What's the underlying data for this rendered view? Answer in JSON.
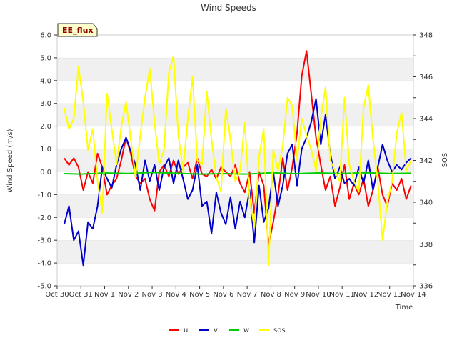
{
  "chart_data": {
    "type": "line",
    "title": "Wind Speeds",
    "badge": "EE_flux",
    "xlabel": "Time",
    "ylabel": "Wind Speed (m/s)",
    "y2label": "SOS",
    "x_ticks": [
      "Oct 30",
      "Oct 31",
      "Nov 1",
      "Nov 2",
      "Nov 3",
      "Nov 4",
      "Nov 5",
      "Nov 6",
      "Nov 7",
      "Nov 8",
      "Nov 9",
      "Nov 10",
      "Nov 11",
      "Nov 12",
      "Nov 13",
      "Nov 14"
    ],
    "xlim": [
      0,
      15
    ],
    "ylim": [
      -5.0,
      6.0
    ],
    "y_ticks": [
      "-5.0",
      "-4.0",
      "-3.0",
      "-2.0",
      "-1.0",
      "0.0",
      "1.0",
      "2.0",
      "3.0",
      "4.0",
      "5.0",
      "6.0"
    ],
    "y2lim": [
      336,
      348
    ],
    "y2_ticks": [
      "336",
      "338",
      "340",
      "342",
      "344",
      "346",
      "348"
    ],
    "grid": "horizontal bands",
    "legend_position": "bottom-center",
    "series": [
      {
        "name": "u",
        "color": "#ff0000",
        "axis": "left",
        "x": [
          0.3,
          0.5,
          0.7,
          0.9,
          1.1,
          1.3,
          1.5,
          1.7,
          1.9,
          2.1,
          2.3,
          2.5,
          2.7,
          2.9,
          3.1,
          3.3,
          3.5,
          3.7,
          3.9,
          4.1,
          4.3,
          4.5,
          4.7,
          4.9,
          5.1,
          5.3,
          5.5,
          5.7,
          5.9,
          6.1,
          6.3,
          6.5,
          6.7,
          6.9,
          7.1,
          7.3,
          7.5,
          7.7,
          7.9,
          8.1,
          8.3,
          8.5,
          8.7,
          8.9,
          9.1,
          9.3,
          9.5,
          9.7,
          9.9,
          10.1,
          10.3,
          10.5,
          10.7,
          10.9,
          11.1,
          11.3,
          11.5,
          11.7,
          11.9,
          12.1,
          12.3,
          12.5,
          12.7,
          12.9,
          13.1,
          13.3,
          13.5,
          13.7,
          13.9,
          14.1,
          14.3,
          14.5,
          14.7,
          14.9
        ],
        "y": [
          0.6,
          0.3,
          0.6,
          0.2,
          -0.8,
          0.0,
          -0.5,
          0.8,
          0.2,
          -1.0,
          -0.6,
          -0.3,
          0.5,
          1.5,
          0.8,
          -0.2,
          -0.5,
          -0.3,
          -1.2,
          -1.7,
          0.0,
          0.3,
          -0.2,
          0.5,
          -0.1,
          0.2,
          0.4,
          -0.3,
          0.6,
          -0.1,
          -0.2,
          0.1,
          -0.3,
          0.2,
          0.0,
          -0.2,
          0.3,
          -0.5,
          -0.9,
          0.0,
          -1.8,
          0.0,
          -0.6,
          -3.2,
          -2.2,
          -1.0,
          0.6,
          -0.8,
          0.2,
          1.7,
          4.2,
          5.3,
          3.4,
          1.5,
          0.3,
          -0.8,
          -0.2,
          -1.5,
          -0.7,
          0.3,
          -1.2,
          -0.5,
          -1.0,
          -0.3,
          -1.5,
          -0.8,
          0.2,
          -1.0,
          -1.5,
          -0.5,
          -0.8,
          -0.3,
          -1.2,
          -0.6
        ]
      },
      {
        "name": "v",
        "color": "#0000cc",
        "axis": "left",
        "x": [
          0.3,
          0.5,
          0.7,
          0.9,
          1.1,
          1.3,
          1.5,
          1.7,
          1.9,
          2.1,
          2.3,
          2.5,
          2.7,
          2.9,
          3.1,
          3.3,
          3.5,
          3.7,
          3.9,
          4.1,
          4.3,
          4.5,
          4.7,
          4.9,
          5.1,
          5.3,
          5.5,
          5.7,
          5.9,
          6.1,
          6.3,
          6.5,
          6.7,
          6.9,
          7.1,
          7.3,
          7.5,
          7.7,
          7.9,
          8.1,
          8.3,
          8.5,
          8.7,
          8.9,
          9.1,
          9.3,
          9.5,
          9.7,
          9.9,
          10.1,
          10.3,
          10.5,
          10.7,
          10.9,
          11.1,
          11.3,
          11.5,
          11.7,
          11.9,
          12.1,
          12.3,
          12.5,
          12.7,
          12.9,
          13.1,
          13.3,
          13.5,
          13.7,
          13.9,
          14.1,
          14.3,
          14.5,
          14.7,
          14.9
        ],
        "y": [
          -2.3,
          -1.5,
          -3.0,
          -2.6,
          -4.1,
          -2.2,
          -2.5,
          -1.5,
          0.2,
          -0.3,
          -0.7,
          0.3,
          1.0,
          1.5,
          0.9,
          0.3,
          -0.8,
          0.5,
          -0.4,
          0.3,
          -0.8,
          0.2,
          0.6,
          -0.5,
          0.5,
          -0.3,
          -1.2,
          -0.8,
          0.3,
          -1.5,
          -1.3,
          -2.7,
          -0.9,
          -1.8,
          -2.3,
          -1.1,
          -2.5,
          -1.3,
          -2.0,
          -0.8,
          -3.1,
          -0.6,
          -2.2,
          -1.6,
          0.0,
          -1.5,
          -0.6,
          0.8,
          1.2,
          -0.6,
          1.0,
          1.5,
          2.2,
          3.2,
          1.2,
          2.5,
          0.8,
          -0.3,
          0.2,
          -0.5,
          -0.3,
          -0.6,
          0.2,
          -0.5,
          0.5,
          -0.8,
          0.2,
          1.2,
          0.5,
          0.0,
          0.3,
          0.1,
          0.4,
          0.6
        ]
      },
      {
        "name": "w",
        "color": "#00cc00",
        "axis": "left",
        "x": [
          0.3,
          1.0,
          2.0,
          3.0,
          4.0,
          5.0,
          6.0,
          7.0,
          8.0,
          9.0,
          10.0,
          11.0,
          12.0,
          13.0,
          14.0,
          14.9
        ],
        "y": [
          -0.08,
          -0.1,
          -0.05,
          -0.07,
          -0.03,
          -0.06,
          -0.1,
          -0.08,
          -0.1,
          -0.04,
          -0.08,
          -0.05,
          -0.07,
          -0.04,
          -0.07,
          -0.06
        ]
      },
      {
        "name": "sos",
        "color": "#ffff00",
        "axis": "right",
        "x": [
          0.3,
          0.5,
          0.7,
          0.9,
          1.1,
          1.3,
          1.5,
          1.7,
          1.9,
          2.1,
          2.3,
          2.5,
          2.7,
          2.9,
          3.1,
          3.3,
          3.5,
          3.7,
          3.9,
          4.1,
          4.3,
          4.5,
          4.7,
          4.9,
          5.1,
          5.3,
          5.5,
          5.7,
          5.9,
          6.1,
          6.3,
          6.5,
          6.7,
          6.9,
          7.1,
          7.3,
          7.5,
          7.7,
          7.9,
          8.1,
          8.3,
          8.5,
          8.7,
          8.9,
          9.1,
          9.3,
          9.5,
          9.7,
          9.9,
          10.1,
          10.3,
          10.5,
          10.7,
          10.9,
          11.1,
          11.3,
          11.5,
          11.7,
          11.9,
          12.1,
          12.3,
          12.5,
          12.7,
          12.9,
          13.1,
          13.3,
          13.5,
          13.7,
          13.9,
          14.1,
          14.3,
          14.5,
          14.7,
          14.9
        ],
        "y": [
          344.5,
          343.5,
          344.0,
          346.5,
          344.8,
          342.5,
          343.5,
          341.0,
          339.5,
          345.2,
          343.5,
          341.8,
          343.6,
          344.8,
          343.0,
          341.2,
          343.2,
          345.0,
          346.4,
          343.8,
          341.8,
          342.5,
          346.2,
          347.0,
          343.2,
          341.5,
          344.0,
          346.0,
          342.0,
          341.8,
          345.3,
          343.0,
          341.2,
          340.5,
          344.5,
          343.0,
          341.0,
          341.5,
          343.8,
          340.2,
          338.8,
          342.2,
          343.5,
          337.0,
          342.5,
          341.5,
          342.7,
          345.0,
          344.6,
          342.0,
          344.0,
          343.2,
          342.5,
          341.5,
          344.0,
          345.5,
          342.0,
          341.5,
          341.0,
          345.0,
          341.8,
          341.0,
          340.5,
          344.5,
          345.6,
          343.0,
          341.0,
          338.2,
          340.0,
          341.0,
          343.3,
          344.3,
          341.5,
          342.0
        ]
      }
    ]
  }
}
